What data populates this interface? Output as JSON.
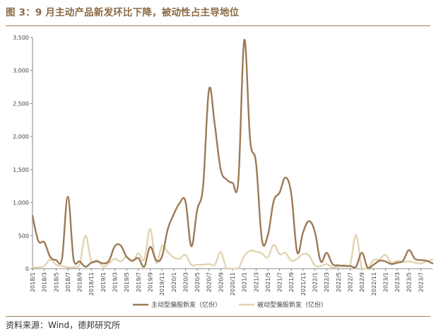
{
  "header": {
    "title": "图 3：9 月主动产品新发环比下降，被动性占主导地位"
  },
  "footer": {
    "source": "资料来源：Wind，德邦研究所"
  },
  "chart_data": {
    "type": "line",
    "title": "",
    "xlabel": "",
    "ylabel": "",
    "ylim": [
      0,
      3500
    ],
    "yticks": [
      0,
      500,
      1000,
      1500,
      2000,
      2500,
      3000,
      3500
    ],
    "ytick_labels": [
      "0",
      "500",
      "1,000",
      "1,500",
      "2,000",
      "2,500",
      "3,000",
      "3,500"
    ],
    "grid": false,
    "legend": "bottom",
    "x": [
      "2018/1",
      "2018/2",
      "2018/3",
      "2018/4",
      "2018/5",
      "2018/6",
      "2018/7",
      "2018/8",
      "2018/9",
      "2018/10",
      "2018/11",
      "2018/12",
      "2019/1",
      "2019/2",
      "2019/3",
      "2019/4",
      "2019/5",
      "2019/6",
      "2019/7",
      "2019/8",
      "2019/9",
      "2019/10",
      "2019/11",
      "2019/12",
      "2020/1",
      "2020/2",
      "2020/3",
      "2020/4",
      "2020/5",
      "2020/6",
      "2020/7",
      "2020/8",
      "2020/9",
      "2020/10",
      "2020/11",
      "2020/12",
      "2021/1",
      "2021/2",
      "2021/3",
      "2021/4",
      "2021/5",
      "2021/6",
      "2021/7",
      "2021/8",
      "2021/9",
      "2021/10",
      "2021/11",
      "2021/12",
      "2022/1",
      "2022/2",
      "2022/3",
      "2022/4",
      "2022/5",
      "2022/6",
      "2022/7",
      "2022/8",
      "2022/9",
      "2022/10",
      "2022/11",
      "2022/12",
      "2023/1",
      "2023/2",
      "2023/3",
      "2023/4",
      "2023/5",
      "2023/6",
      "2023/7",
      "2023/8",
      "2023/9"
    ],
    "xtick_labels": [
      "2018/1",
      "2018/3",
      "2018/5",
      "2018/7",
      "2018/9",
      "2018/11",
      "2019/1",
      "2019/3",
      "2019/5",
      "2019/7",
      "2019/9",
      "2019/11",
      "2020/1",
      "2020/3",
      "2020/5",
      "2020/7",
      "2020/9",
      "2020/11",
      "2021/1",
      "2021/3",
      "2021/5",
      "2021/7",
      "2021/9",
      "2021/11",
      "2022/1",
      "2022/3",
      "2022/5",
      "2022/7",
      "2022/9",
      "2022/11",
      "2023/1",
      "2023/3",
      "2023/5",
      "2023/7"
    ],
    "series": [
      {
        "name": "主动型偏股新发（亿份）",
        "color": "#9c7a55",
        "values": [
          800,
          420,
          400,
          180,
          130,
          140,
          1090,
          130,
          110,
          30,
          90,
          110,
          80,
          120,
          340,
          350,
          180,
          120,
          160,
          30,
          330,
          130,
          180,
          600,
          820,
          990,
          1020,
          340,
          890,
          1250,
          2710,
          2170,
          1500,
          1350,
          1300,
          1340,
          3460,
          1950,
          1600,
          440,
          500,
          1020,
          1150,
          1380,
          1130,
          250,
          550,
          720,
          560,
          110,
          240,
          70,
          50,
          40,
          40,
          30,
          240,
          10,
          60,
          120,
          110,
          70,
          90,
          120,
          280,
          150,
          130,
          120,
          80
        ]
      },
      {
        "name": "被动型偏股新发（亿份）",
        "color": "#e3d3b3",
        "values": [
          20,
          20,
          40,
          140,
          60,
          40,
          20,
          20,
          60,
          500,
          110,
          130,
          30,
          80,
          150,
          110,
          180,
          110,
          230,
          140,
          600,
          90,
          340,
          250,
          170,
          150,
          210,
          60,
          60,
          60,
          70,
          60,
          250,
          0,
          0,
          0,
          190,
          270,
          260,
          230,
          170,
          360,
          220,
          240,
          120,
          150,
          220,
          200,
          50,
          40,
          70,
          20,
          30,
          60,
          60,
          510,
          0,
          0,
          130,
          140,
          210,
          90,
          120,
          100,
          110,
          90,
          80,
          110,
          140
        ]
      }
    ]
  }
}
